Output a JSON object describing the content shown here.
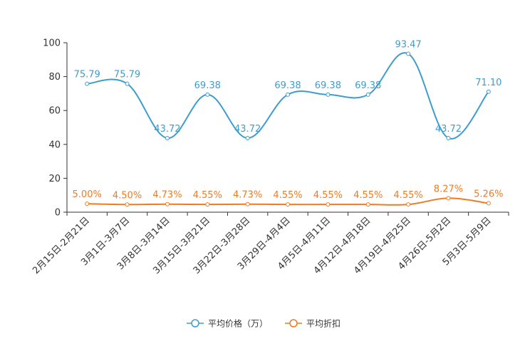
{
  "chart_data": {
    "type": "line",
    "title": "",
    "xlabel": "",
    "ylabel": "",
    "ylim": [
      0,
      100
    ],
    "yticks": [
      0,
      20,
      40,
      60,
      80,
      100
    ],
    "grid": false,
    "legend_position": "bottom-center",
    "categories": [
      "2月15日-2月21日",
      "3月1日-3月7日",
      "3月8日-3月14日",
      "3月15日-3月21日",
      "3月22日-3月28日",
      "3月29日-4月4日",
      "4月5日-4月11日",
      "4月12日-4月18日",
      "4月19日-4月25日",
      "4月26日-5月2日",
      "5月3日-5月9日"
    ],
    "series": [
      {
        "name": "平均价格（万）",
        "color": "#3e9dcd",
        "values": [
          75.79,
          75.79,
          43.72,
          69.38,
          43.72,
          69.38,
          69.38,
          69.38,
          93.47,
          43.72,
          71.1
        ],
        "labels": [
          "75.79",
          "75.79",
          "43.72",
          "69.38",
          "43.72",
          "69.38",
          "69.38",
          "69.38",
          "93.47",
          "43.72",
          "71.10"
        ]
      },
      {
        "name": "平均折扣",
        "color": "#f07a22",
        "values": [
          5.0,
          4.5,
          4.73,
          4.55,
          4.73,
          4.55,
          4.55,
          4.55,
          4.55,
          8.27,
          5.26
        ],
        "labels": [
          "5.00%",
          "4.50%",
          "4.73%",
          "4.55%",
          "4.73%",
          "4.55%",
          "4.55%",
          "4.55%",
          "4.55%",
          "8.27%",
          "5.26%"
        ]
      }
    ]
  }
}
